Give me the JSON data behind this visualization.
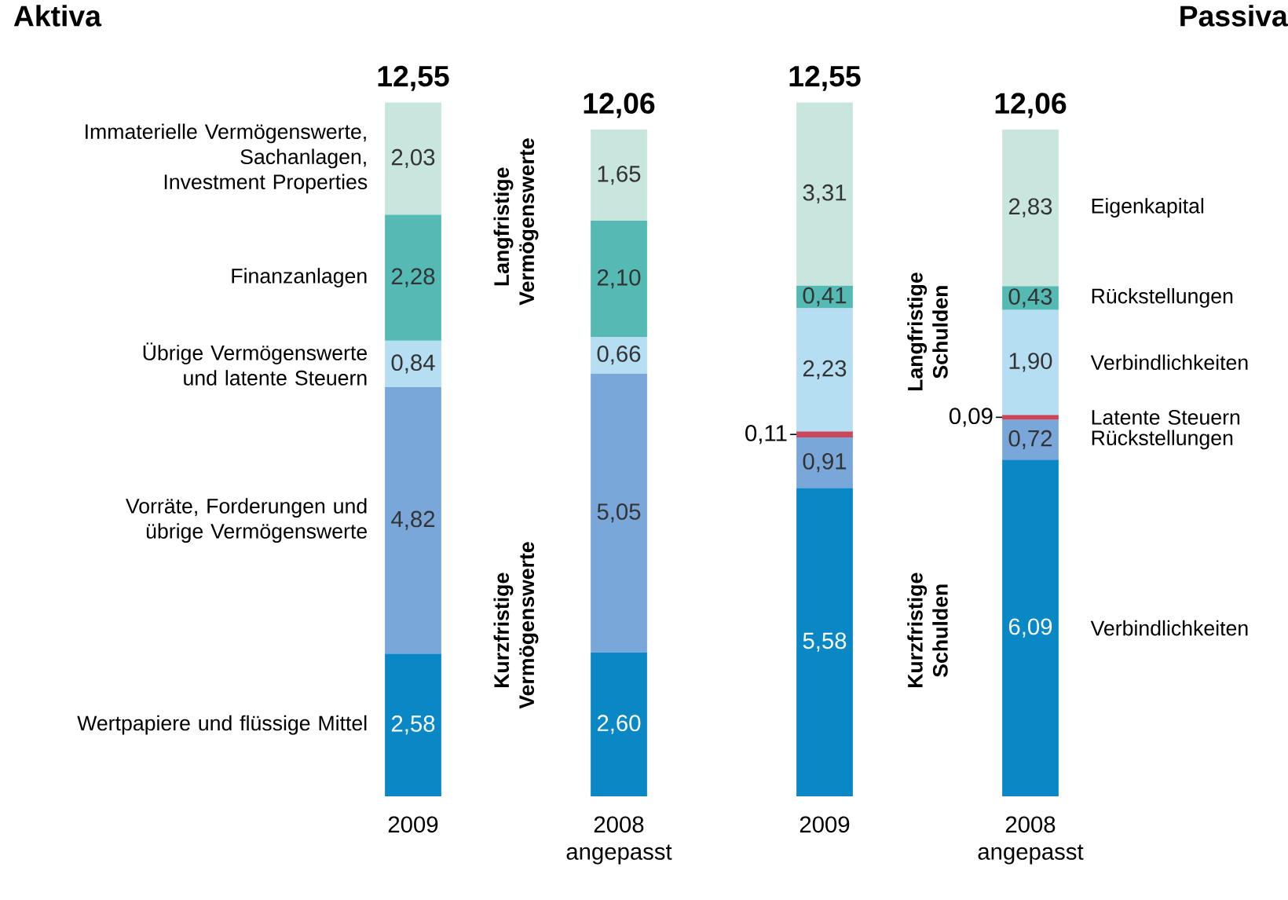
{
  "chart_data": {
    "type": "bar",
    "stacked": true,
    "title": "Aktiva",
    "categories": [
      "2009",
      "2008 angepasst",
      "2009",
      "2008 angepasst"
    ],
    "totals": [
      "12,55",
      "12,06",
      "12,55",
      "12,06"
    ],
    "series": [
      {
        "name": "Wertpapiere und flüssige Mittel",
        "color": "#0a88c6",
        "values": [
          2.58,
          2.6,
          null,
          null
        ],
        "value_labels": [
          "2,58",
          "2,60",
          null,
          null
        ]
      },
      {
        "name": "Vorräte, Forderungen und übrige Vermögenswerte",
        "color": "#7aa7d9",
        "values": [
          4.82,
          5.05,
          null,
          null
        ],
        "value_labels": [
          "4,82",
          "5,05",
          null,
          null
        ]
      },
      {
        "name": "Übrige Vermögenswerte und latente Steuern",
        "color": "#b5def3",
        "values": [
          0.84,
          0.66,
          null,
          null
        ],
        "value_labels": [
          "0,84",
          "0,66",
          null,
          null
        ]
      },
      {
        "name": "Finanzanlagen",
        "color": "#55bab4",
        "values": [
          2.28,
          2.1,
          null,
          null
        ],
        "value_labels": [
          "2,28",
          "2,10",
          null,
          null
        ]
      },
      {
        "name": "Immaterielle Vermögenswerte, Sachanlagen, Investment Properties",
        "color": "#c9e6de",
        "values": [
          2.03,
          1.65,
          null,
          null
        ],
        "value_labels": [
          "2,03",
          "1,65",
          null,
          null
        ]
      },
      {
        "name": "Verbindlichkeiten",
        "color": "#0a88c6",
        "values": [
          null,
          null,
          5.58,
          6.09
        ],
        "value_labels": [
          null,
          null,
          "5,58",
          "6,09"
        ]
      },
      {
        "name": "Rückstellungen",
        "color": "#7aa7d9",
        "values": [
          null,
          null,
          0.91,
          0.72
        ],
        "value_labels": [
          null,
          null,
          "0,91",
          "0,72"
        ]
      },
      {
        "name": "Latente Steuern",
        "color": "#c8475a",
        "values": [
          null,
          null,
          0.11,
          0.09
        ],
        "value_labels": [
          null,
          null,
          "0,11",
          "0,09"
        ]
      },
      {
        "name": "Verbindlichkeiten",
        "color": "#b5def3",
        "values": [
          null,
          null,
          2.23,
          1.9
        ],
        "value_labels": [
          null,
          null,
          "2,23",
          "1,90"
        ]
      },
      {
        "name": "Rückstellungen",
        "color": "#55bab4",
        "values": [
          null,
          null,
          0.41,
          0.43
        ],
        "value_labels": [
          null,
          null,
          "0,41",
          "0,43"
        ]
      },
      {
        "name": "Eigenkapital",
        "color": "#c9e6de",
        "values": [
          null,
          null,
          3.31,
          2.83
        ],
        "value_labels": [
          null,
          null,
          "3,31",
          "2,83"
        ]
      }
    ],
    "annotations": [
      "Langfristige Vermögenswerte",
      "Kurzfristige Vermögenswerte",
      "Langfristige Schulden",
      "Kurzfristige Schulden",
      "Passiva"
    ]
  }
}
